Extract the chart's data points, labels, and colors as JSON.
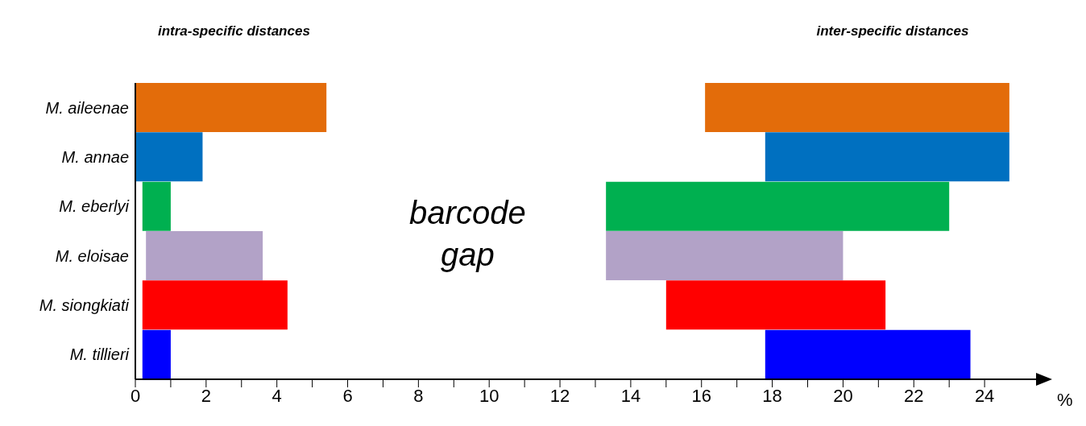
{
  "chart_data": {
    "type": "bar",
    "orientation": "horizontal",
    "categories": [
      "M. aileenae",
      "M. annae",
      "M. eberlyi",
      "M. eloisae",
      "M. siongkiati",
      "M. tillieri"
    ],
    "series": [
      {
        "base": [
          0,
          0,
          0.2,
          0.3,
          0.2,
          0.2
        ],
        "values": [
          5.4,
          1.9,
          0.8,
          3.3,
          4.1,
          0.8
        ],
        "colors": [
          "#e36c0a",
          "#0070c0",
          "#00b050",
          "#b2a2c7",
          "#ff0000",
          "#0000ff"
        ]
      },
      {
        "base": [
          16.1,
          17.8,
          13.3,
          13.3,
          15.0,
          17.8
        ],
        "values": [
          8.6,
          6.9,
          9.7,
          6.7,
          6.2,
          5.8
        ],
        "colors": [
          "#e36c0a",
          "#0070c0",
          "#00b050",
          "#b2a2c7",
          "#ff0000",
          "#0000ff"
        ]
      }
    ],
    "xlim": [
      0,
      25.5
    ],
    "xticks": [
      0,
      {
        "value": 1,
        "label": null
      },
      2,
      {
        "value": 3,
        "label": null
      },
      4,
      {
        "value": 5,
        "label": null
      },
      6,
      {
        "value": 7,
        "label": null
      },
      8,
      {
        "value": 9,
        "label": null
      },
      10,
      {
        "value": 11,
        "label": null
      },
      12,
      {
        "value": 13,
        "label": null
      },
      14,
      {
        "value": 15,
        "label": null
      },
      16,
      {
        "value": 17,
        "label": null
      },
      18,
      {
        "value": 19,
        "label": null
      },
      20,
      {
        "value": 21,
        "label": null
      },
      22,
      {
        "value": 23,
        "label": null
      },
      24
    ],
    "xlabel": "%",
    "annotations": [
      "intra-specific distances",
      "inter-specific distances",
      "barcode gap"
    ]
  }
}
